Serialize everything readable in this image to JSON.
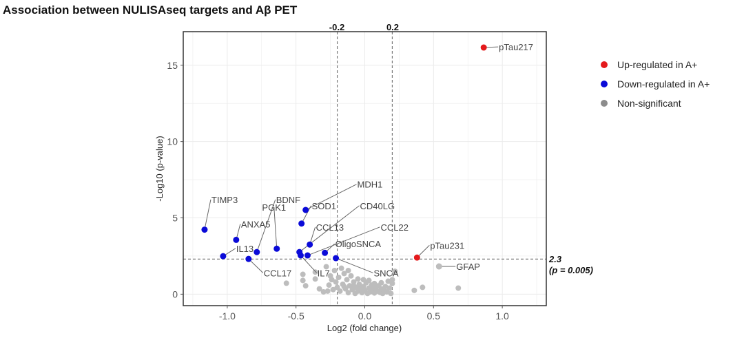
{
  "chart_data": {
    "type": "scatter",
    "title": "Association between NULISAseq targets and Aβ PET",
    "xlabel": "Log2 (fold change)",
    "ylabel": "-Log10 (p-value)",
    "xlim": [
      -1.32,
      1.32
    ],
    "ylim": [
      -0.75,
      17.2
    ],
    "x_ticks": [
      "-1.0",
      "-0.5",
      "0.0",
      "0.5",
      "1.0"
    ],
    "x_tick_values": [
      -1.0,
      -0.5,
      0.0,
      0.5,
      1.0
    ],
    "y_ticks": [
      "0",
      "5",
      "10",
      "15"
    ],
    "y_tick_values": [
      0,
      5,
      10,
      15
    ],
    "grid": true,
    "vlines": [
      {
        "value": -0.2,
        "label": "-0.2"
      },
      {
        "value": 0.2,
        "label": "0.2"
      }
    ],
    "hline": {
      "value": 2.3,
      "label_line1": "2.3",
      "label_line2": "(p = 0.005)"
    },
    "colors": {
      "up": "#e41a1c",
      "down": "#0a0ad8",
      "ns": "#bdbdbd",
      "legend_ns": "#8c8c8c"
    },
    "legend": {
      "position": "right",
      "items": [
        {
          "label": "Up-regulated in A+",
          "group": "up"
        },
        {
          "label": "Down-regulated in A+",
          "group": "down"
        },
        {
          "label": "Non-significant",
          "group": "ns"
        }
      ]
    },
    "labeled_points": [
      {
        "label": "pTau217",
        "x": 0.865,
        "y": 16.16,
        "group": "up",
        "lx": 0.97,
        "ly": 16.2
      },
      {
        "label": "pTau231",
        "x": 0.38,
        "y": 2.4,
        "group": "up",
        "lx": 0.47,
        "ly": 3.2
      },
      {
        "label": "GFAP",
        "x": 0.54,
        "y": 1.82,
        "group": "ns",
        "lx": 0.66,
        "ly": 1.82
      },
      {
        "label": "TIMP3",
        "x": -1.165,
        "y": 4.23,
        "group": "down",
        "lx": -1.12,
        "ly": 6.2
      },
      {
        "label": "ANXA5",
        "x": -0.935,
        "y": 3.56,
        "group": "down",
        "lx": -0.905,
        "ly": 4.6
      },
      {
        "label": "IL13",
        "x": -1.03,
        "y": 2.49,
        "group": "down",
        "lx": -0.94,
        "ly": 3.0
      },
      {
        "label": "BDNF",
        "x": -0.785,
        "y": 2.76,
        "group": "down",
        "lx": -0.65,
        "ly": 6.2
      },
      {
        "label": "CCL17",
        "x": -0.845,
        "y": 2.31,
        "group": "down",
        "lx": -0.74,
        "ly": 1.4
      },
      {
        "label": "PGK1",
        "x": -0.64,
        "y": 2.98,
        "group": "down",
        "lx": -0.66,
        "ly": 5.7
      },
      {
        "label": "MDH1",
        "x": -0.43,
        "y": 5.52,
        "group": "down",
        "lx": -0.06,
        "ly": 7.2
      },
      {
        "label": "SOD1",
        "x": -0.46,
        "y": 4.63,
        "group": "down",
        "lx": -0.39,
        "ly": 5.8
      },
      {
        "label": "CCL13",
        "x": -0.4,
        "y": 3.25,
        "group": "down",
        "lx": -0.36,
        "ly": 4.4
      },
      {
        "label": "CD40LG",
        "x": -0.475,
        "y": 2.76,
        "group": "down",
        "lx": -0.04,
        "ly": 5.8
      },
      {
        "label": "IL7",
        "x": -0.466,
        "y": 2.54,
        "group": "down",
        "lx": -0.35,
        "ly": 1.4
      },
      {
        "label": "CCL22",
        "x": -0.416,
        "y": 2.54,
        "group": "down",
        "lx": 0.11,
        "ly": 4.4
      },
      {
        "label": "OligoSNCA",
        "x": -0.29,
        "y": 2.71,
        "group": "down",
        "lx": -0.22,
        "ly": 3.3
      },
      {
        "label": "SNCA",
        "x": -0.21,
        "y": 2.36,
        "group": "down",
        "lx": 0.06,
        "ly": 1.4
      }
    ],
    "ns_points": [
      [
        -0.57,
        0.72
      ],
      [
        -0.45,
        1.3
      ],
      [
        -0.45,
        0.9
      ],
      [
        -0.43,
        0.55
      ],
      [
        -0.36,
        1.45
      ],
      [
        -0.36,
        1.0
      ],
      [
        -0.33,
        0.35
      ],
      [
        -0.3,
        0.15
      ],
      [
        -0.28,
        1.8
      ],
      [
        -0.26,
        0.6
      ],
      [
        -0.25,
        1.2
      ],
      [
        -0.24,
        0.95
      ],
      [
        -0.23,
        0.3
      ],
      [
        -0.22,
        1.55
      ],
      [
        -0.21,
        0.8
      ],
      [
        -0.2,
        0.45
      ],
      [
        -0.19,
        1.1
      ],
      [
        -0.18,
        0.2
      ],
      [
        -0.17,
        1.7
      ],
      [
        -0.16,
        0.65
      ],
      [
        -0.15,
        1.35
      ],
      [
        -0.14,
        0.35
      ],
      [
        -0.13,
        0.95
      ],
      [
        -0.12,
        1.55
      ],
      [
        -0.12,
        0.1
      ],
      [
        -0.11,
        0.55
      ],
      [
        -0.1,
        1.2
      ],
      [
        -0.09,
        0.3
      ],
      [
        -0.08,
        0.8
      ],
      [
        -0.07,
        0.05
      ],
      [
        -0.06,
        0.45
      ],
      [
        -0.05,
        1.0
      ],
      [
        -0.05,
        0.2
      ],
      [
        -0.04,
        0.65
      ],
      [
        -0.03,
        0.35
      ],
      [
        -0.02,
        0.1
      ],
      [
        -0.01,
        0.5
      ],
      [
        0.0,
        0.25
      ],
      [
        0.01,
        0.75
      ],
      [
        0.02,
        0.05
      ],
      [
        0.03,
        0.4
      ],
      [
        0.04,
        0.15
      ],
      [
        0.05,
        0.6
      ],
      [
        0.06,
        0.3
      ],
      [
        0.07,
        0.08
      ],
      [
        0.08,
        0.45
      ],
      [
        0.09,
        0.2
      ],
      [
        0.1,
        0.55
      ],
      [
        0.11,
        0.12
      ],
      [
        0.12,
        0.35
      ],
      [
        0.13,
        0.05
      ],
      [
        0.14,
        0.25
      ],
      [
        0.15,
        0.5
      ],
      [
        0.16,
        0.15
      ],
      [
        0.18,
        0.4
      ],
      [
        0.19,
        0.05
      ],
      [
        0.2,
        0.7
      ],
      [
        0.22,
        1.5
      ],
      [
        0.2,
        0.95
      ],
      [
        0.03,
        0.9
      ],
      [
        -0.08,
        0.55
      ],
      [
        0.07,
        0.7
      ],
      [
        0.12,
        0.75
      ],
      [
        0.17,
        0.85
      ],
      [
        -0.15,
        0.5
      ],
      [
        -0.01,
        0.95
      ],
      [
        0.36,
        0.25
      ],
      [
        0.42,
        0.45
      ],
      [
        0.68,
        0.4
      ],
      [
        -0.27,
        0.2
      ]
    ]
  }
}
